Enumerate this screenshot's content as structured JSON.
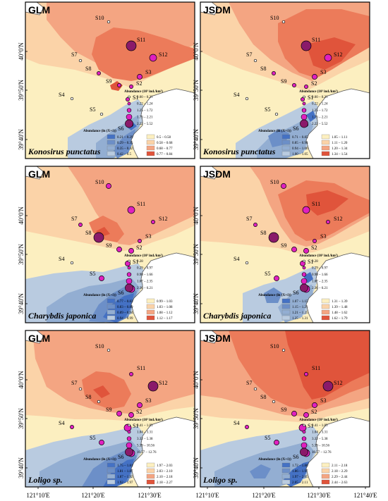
{
  "x_ticks": [
    "121°10'E",
    "121°20'E",
    "121°30'E",
    "121°40'E"
  ],
  "y_ticks": [
    "40°0'N",
    "39°50'N",
    "39°40'N"
  ],
  "colors": {
    "dark_red": "#e0543b",
    "red": "#ec7b5a",
    "orange": "#f4a582",
    "peach": "#fbd3a8",
    "pale": "#fcefc0",
    "light_blue": "#b9cbe0",
    "mid_blue": "#93aed2",
    "blue": "#6c8fc8",
    "dark_blue": "#4471c4",
    "land": "#ffffff",
    "circle": "#e020c0",
    "circle_dark": "#8a1a6a"
  },
  "stations": [
    "S1",
    "S2",
    "S3",
    "S4",
    "S5",
    "S6",
    "S7",
    "S8",
    "S9",
    "S10",
    "S11",
    "S12"
  ],
  "panels": [
    {
      "model": "GLM",
      "species": "Konosirus punctatus",
      "circle_title": "Abundance (10³ ind./km²)",
      "circle_classes": [
        "0.00 – 0.21",
        "0.22 – 1.24",
        "1.25 – 1.72",
        "1.73 – 2.21",
        "2.22 – 5.52"
      ],
      "fill_title": "Abundance (ln (X+1))",
      "fill_classes": [
        "0.21 – 0.29",
        "0.29 – 0.35",
        "0.35 – 0.42",
        "0.42 – 0.5",
        "0.5 – 0.58",
        "0.58 – 0.68",
        "0.68 – 0.77",
        "0.77 – 0.84"
      ],
      "station_class": [
        1,
        1,
        2,
        0,
        0,
        1,
        0,
        1,
        1,
        0,
        4,
        3
      ]
    },
    {
      "model": "JSDM",
      "species": "Konosirus punctatus",
      "circle_title": "Abundance (10³ ind./km²)",
      "circle_classes": [
        "0.00 – 0.21",
        "0.22 – 1.24",
        "1.25 – 1.72",
        "1.73 – 2.21",
        "2.22 – 5.52"
      ],
      "fill_title": "Abundance (ln (X+1))",
      "fill_classes": [
        "0.71 – 0.85",
        "0.85 – 0.94",
        "0.94 – 1.00",
        "1.00 – 1.05",
        "1.05 – 1.11",
        "1.11 – 1.20",
        "1.20 – 1.34",
        "1.34 – 1.54"
      ],
      "station_class": [
        1,
        1,
        2,
        0,
        0,
        1,
        0,
        1,
        1,
        0,
        4,
        3
      ]
    },
    {
      "model": "GLM",
      "species": "Charybdis japonica",
      "circle_title": "Abundance (10³ ind./km²)",
      "circle_classes": [
        "0.28",
        "0.29 – 0.97",
        "0.98 – 1.66",
        "1.67 – 2.35",
        "2.36 – 6.21"
      ],
      "fill_title": "Abundance (ln (X+1))",
      "fill_classes": [
        "0.77 – 0.83",
        "0.83 – 0.89",
        "0.89 – 0.94",
        "0.94 – 0.99",
        "0.99 – 1.03",
        "1.03 – 1.08",
        "1.08 – 1.12",
        "1.12 – 1.17"
      ],
      "station_class": [
        2,
        2,
        1,
        0,
        2,
        3,
        1,
        4,
        2,
        2,
        3,
        1
      ]
    },
    {
      "model": "JSDM",
      "species": "Charybdis japonica",
      "circle_title": "Abundance (10³ ind./km²)",
      "circle_classes": [
        "0.28",
        "0.29 – 0.97",
        "0.98 – 1.66",
        "1.67 – 2.35",
        "2.36 – 6.21"
      ],
      "fill_title": "Abundance (ln (X+1))",
      "fill_classes": [
        "1.07 – 1.15",
        "1.15 – 1.21",
        "1.21 – 1.25",
        "1.25 – 1.31",
        "1.31 – 1.39",
        "1.39 – 1.48",
        "1.48 – 1.62",
        "1.62 – 1.79"
      ],
      "station_class": [
        2,
        2,
        1,
        0,
        2,
        3,
        1,
        4,
        2,
        2,
        3,
        1
      ]
    },
    {
      "model": "GLM",
      "species": "Loligo sp.",
      "circle_title": "Abundance (10³ ind./km²)",
      "circle_classes": [
        "0.41 – 1.03",
        "1.04 – 3.31",
        "3.32 – 5.38",
        "5.39 – 10.56",
        "10.57 – 12.76"
      ],
      "fill_title": "Abundance (ln (X+1))",
      "fill_classes": [
        "1.75 – 1.81",
        "1.81 – 1.87",
        "1.87 – 1.92",
        "1.92 – 1.97",
        "1.97 – 2.03",
        "2.03 – 2.10",
        "2.10 – 2.18",
        "2.18 – 2.27"
      ],
      "station_class": [
        3,
        2,
        2,
        1,
        2,
        3,
        0,
        0,
        2,
        0,
        1,
        4
      ]
    },
    {
      "model": "JSDM",
      "species": "Loligo sp.",
      "circle_title": "Abundance (10³ ind./km²)",
      "circle_classes": [
        "0.41 – 1.03",
        "1.04 – 3.31",
        "3.32 – 5.38",
        "5.39 – 10.56",
        "10.57 – 12.76"
      ],
      "fill_title": "Abundance (ln (X+1))",
      "fill_classes": [
        "1.72 – 1.86",
        "1.86 – 1.97",
        "1.97 – 2.05",
        "2.05 – 2.11",
        "2.11 – 2.18",
        "2.18 – 2.29",
        "2.29 – 2.44",
        "2.44 – 2.63"
      ],
      "station_class": [
        3,
        2,
        2,
        1,
        2,
        3,
        0,
        0,
        2,
        0,
        1,
        4
      ]
    }
  ]
}
